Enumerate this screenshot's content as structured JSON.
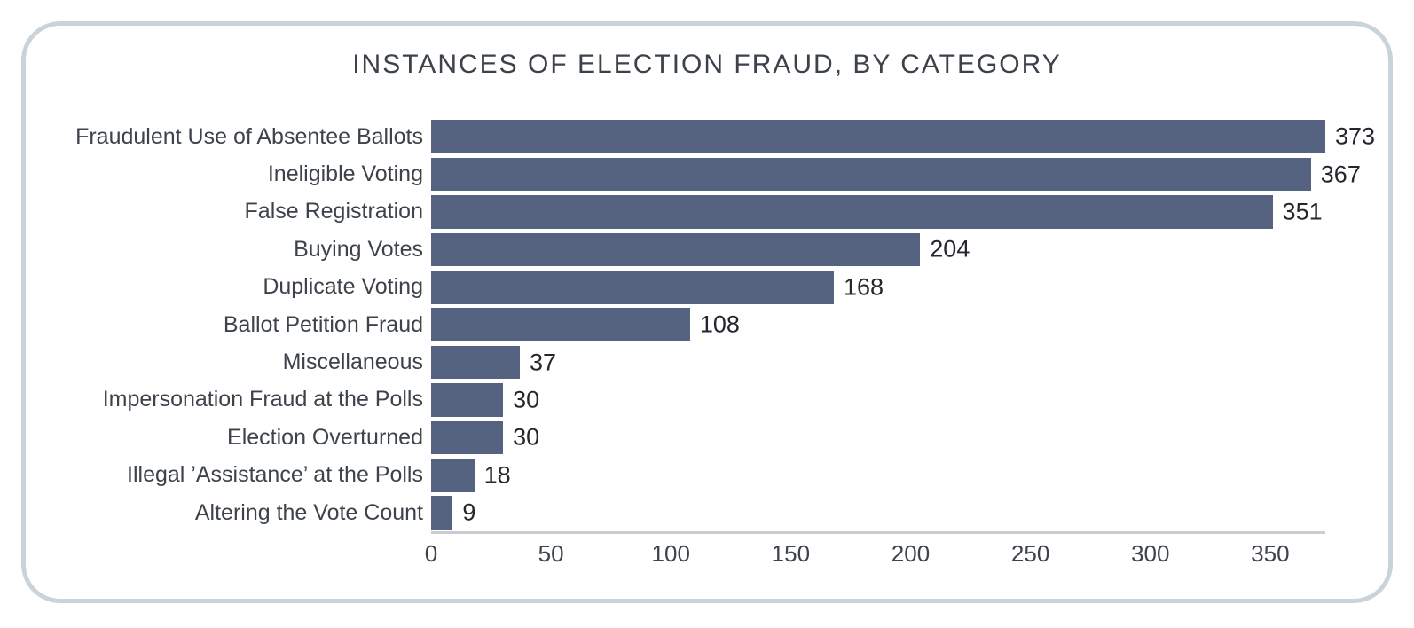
{
  "title": "INSTANCES OF ELECTION FRAUD, BY CATEGORY",
  "colors": {
    "bar": "#566380",
    "card_border": "#c9d4da",
    "axis_line": "#c9cdd0",
    "title_text": "#3b424a",
    "label_text": "#3d434b",
    "value_text": "#24272c"
  },
  "chart_data": {
    "type": "bar",
    "orientation": "horizontal",
    "title": "INSTANCES OF ELECTION FRAUD, BY CATEGORY",
    "categories": [
      "Fraudulent Use of Absentee Ballots",
      "Ineligible Voting",
      "False Registration",
      "Buying Votes",
      "Duplicate Voting",
      "Ballot Petition Fraud",
      "Miscellaneous",
      "Impersonation Fraud at the Polls",
      "Election Overturned",
      "Illegal ’Assistance’ at the Polls",
      "Altering the Vote Count"
    ],
    "values": [
      373,
      367,
      351,
      204,
      168,
      108,
      37,
      30,
      30,
      18,
      9
    ],
    "value_labels_shown": true,
    "xlabel": "",
    "ylabel": "",
    "xlim": [
      0,
      373
    ],
    "x_ticks": [
      0,
      50,
      100,
      150,
      200,
      250,
      300,
      350
    ],
    "grid": false,
    "legend": false
  }
}
